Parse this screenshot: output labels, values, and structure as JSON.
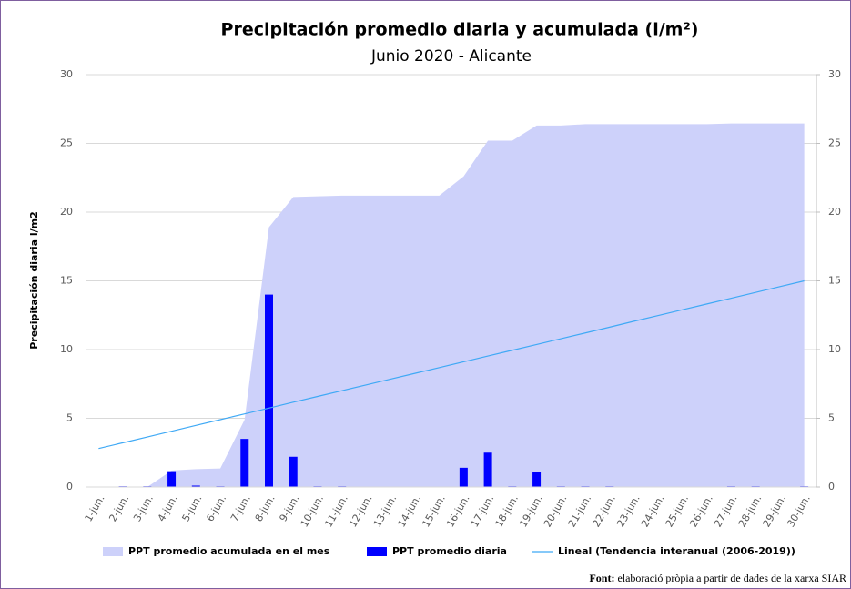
{
  "chart_data": {
    "type": "combo",
    "title": "Precipitación promedio diaria y acumulada (l/m²)",
    "subtitle": "Junio 2020 - Alicante",
    "y_label": "Precipitación diaria l/m2",
    "categories": [
      "1-jun.",
      "2-jun.",
      "3-jun.",
      "4-jun.",
      "5-jun.",
      "6-jun.",
      "7-jun.",
      "8-jun.",
      "9-jun.",
      "10-jun.",
      "11-jun.",
      "12-jun.",
      "13-jun.",
      "14-jun.",
      "15-jun.",
      "16-jun.",
      "17-jun.",
      "18-jun.",
      "19-jun.",
      "20-jun.",
      "21-jun.",
      "22-jun.",
      "23-jun.",
      "24-jun.",
      "25-jun.",
      "26-jun.",
      "27-jun.",
      "28-jun.",
      "29-jun.",
      "30-jun."
    ],
    "series": [
      {
        "name": "PPT promedio acumulada en el mes",
        "kind": "area",
        "color": "#cdd1fa",
        "values": [
          0,
          0,
          0,
          1.2,
          1.3,
          1.35,
          4.9,
          18.9,
          21.1,
          21.15,
          21.2,
          21.2,
          21.2,
          21.2,
          21.2,
          22.6,
          25.2,
          25.2,
          26.3,
          26.3,
          26.4,
          26.4,
          26.4,
          26.4,
          26.4,
          26.4,
          26.45,
          26.45,
          26.45,
          26.45
        ]
      },
      {
        "name": "PPT promedio diaria",
        "kind": "bar",
        "color": "#0000ff",
        "values": [
          0,
          0.05,
          0.05,
          1.15,
          0.1,
          0.05,
          3.5,
          14,
          2.2,
          0.05,
          0.05,
          0,
          0,
          0,
          0,
          1.4,
          2.5,
          0.05,
          1.1,
          0.05,
          0.05,
          0.05,
          0,
          0,
          0,
          0,
          0.05,
          0.05,
          0,
          0.05
        ]
      },
      {
        "name": "Lineal (Tendencia interanual (2006-2019))",
        "kind": "line",
        "color": "#3fa9f5",
        "values": [
          2.8,
          3.22,
          3.64,
          4.06,
          4.48,
          4.9,
          5.32,
          5.74,
          6.17,
          6.59,
          7.01,
          7.43,
          7.85,
          8.27,
          8.69,
          9.11,
          9.53,
          9.95,
          10.37,
          10.79,
          11.21,
          11.63,
          12.06,
          12.48,
          12.9,
          13.32,
          13.74,
          14.16,
          14.58,
          15.0
        ]
      }
    ],
    "ylim": [
      0,
      30
    ],
    "yticks": [
      0,
      5,
      10,
      15,
      20,
      25,
      30
    ],
    "y2lim": [
      0,
      30
    ],
    "y2ticks": [
      0,
      5,
      10,
      15,
      20,
      25,
      30
    ],
    "grid": true,
    "legend": "bottom",
    "note_label": "Font:",
    "note": "elaboració pròpia a partir de dades de la xarxa SIAR"
  }
}
